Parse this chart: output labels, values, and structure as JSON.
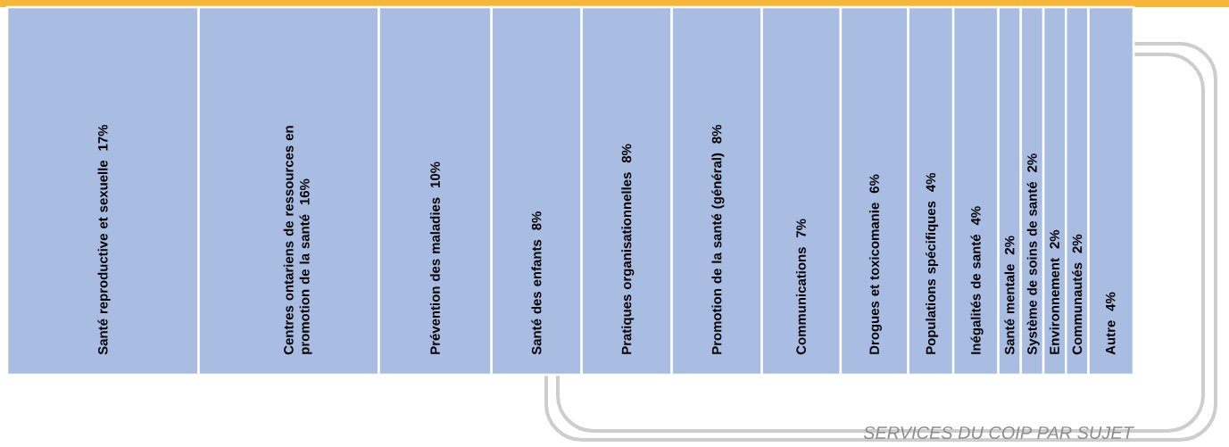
{
  "chart_data": {
    "type": "other",
    "title": "SERVICES DU COIP PAR SUJET",
    "categories": [
      "Santé reproductive et sexuelle",
      "Centres ontariens de ressources en promotion de la santé",
      "Prévention des maladies",
      "Santé des enfants",
      "Pratiques organisationnelles",
      "Promotion de la santé (général)",
      "Communications",
      "Drogues et toxicomanie",
      "Populations spécifiques",
      "Inégalités de santé",
      "Santé mentale",
      "Système de soins de santé",
      "Environnement",
      "Communautés",
      "Autre"
    ],
    "values": [
      17,
      16,
      10,
      8,
      8,
      8,
      7,
      6,
      4,
      4,
      2,
      2,
      2,
      2,
      4
    ],
    "value_labels": [
      "17%",
      "16%",
      "10%",
      "8%",
      "8%",
      "8%",
      "7%",
      "6%",
      "4%",
      "4%",
      "2%",
      "2%",
      "2%",
      "2%",
      "4%"
    ],
    "color": "#a9bde3"
  }
}
